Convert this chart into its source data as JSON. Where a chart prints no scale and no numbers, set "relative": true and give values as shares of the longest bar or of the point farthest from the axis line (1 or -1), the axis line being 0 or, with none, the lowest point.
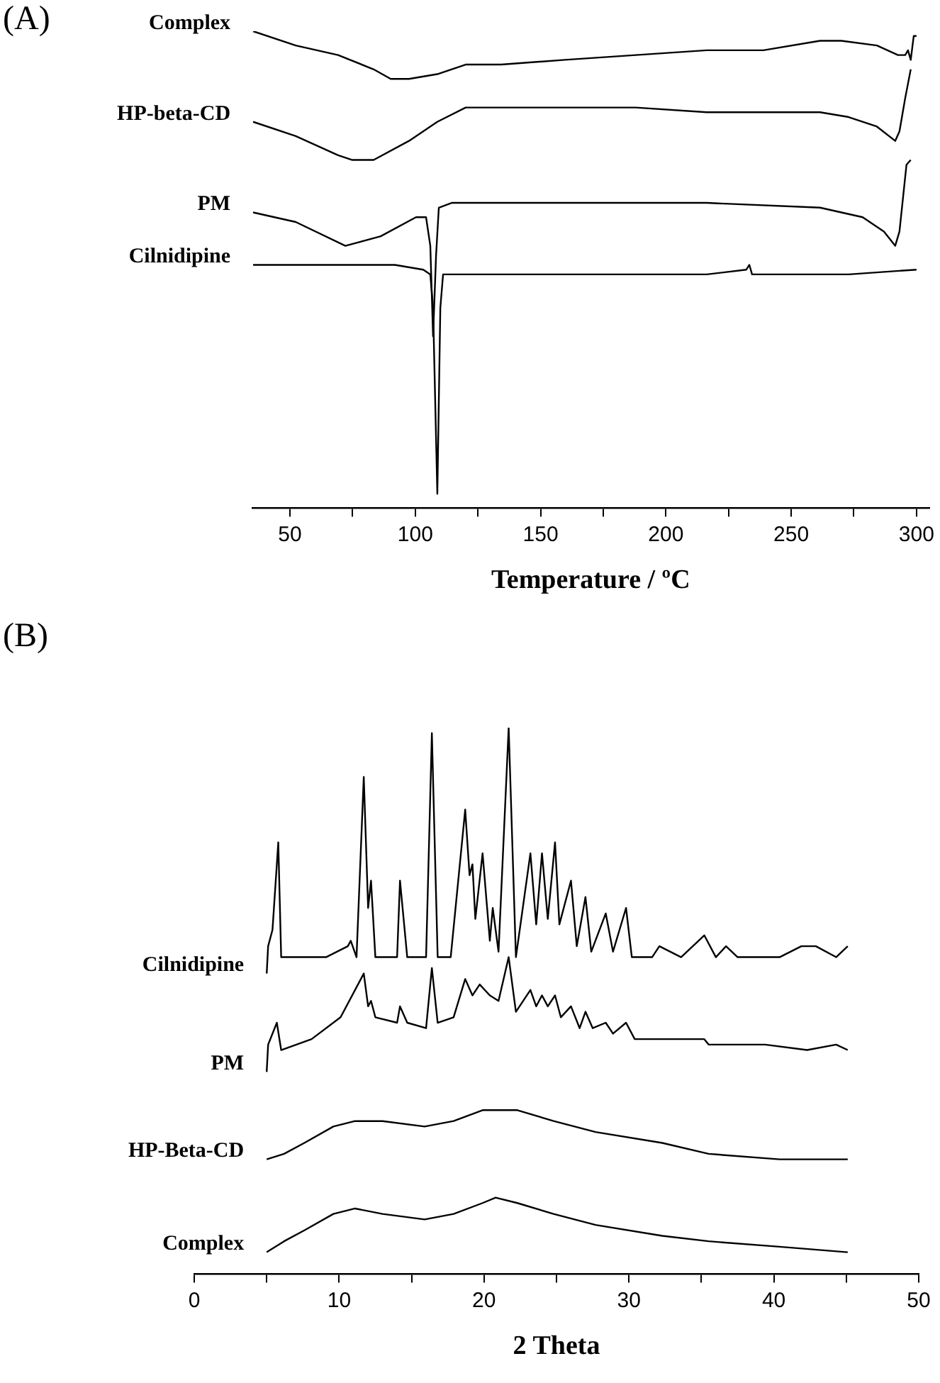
{
  "chart_data": [
    {
      "type": "line",
      "title": "(A)",
      "xlabel": "Temperature / ºC",
      "relative": true,
      "legend": false,
      "grid": false,
      "tick_labels": "x",
      "marker": "none",
      "line_style": "solid",
      "xlim": [
        35,
        305
      ],
      "xticks": [
        50,
        {
          "value": 75,
          "label": null
        },
        100,
        {
          "value": 125,
          "label": null
        },
        150,
        {
          "value": 175,
          "label": null
        },
        200,
        {
          "value": 225,
          "label": null
        },
        250,
        {
          "value": 275,
          "label": null
        },
        300
      ],
      "series": [
        {
          "name": "Complex",
          "color": "#000000",
          "x": [
            35.3,
            52.3,
            69.2,
            83.4,
            90.2,
            97.5,
            108.8,
            120.1,
            134.3,
            159.7,
            188.0,
            216.3,
            238.9,
            261.5,
            270.0,
            284.2,
            292.6,
            295.5,
            296.6,
            297.7,
            298.9,
            300
          ],
          "values": [
            1.0,
            0.97,
            0.95,
            0.92,
            0.9,
            0.9,
            0.91,
            0.93,
            0.93,
            0.94,
            0.95,
            0.96,
            0.96,
            0.98,
            0.98,
            0.97,
            0.95,
            0.95,
            0.96,
            0.94,
            0.99,
            0.99
          ]
        },
        {
          "name": "HP-beta-CD",
          "color": "#000000",
          "x": [
            35.3,
            52.3,
            69.2,
            74.9,
            83.4,
            97.5,
            108.8,
            120.1,
            131.4,
            159.7,
            188.0,
            216.3,
            261.5,
            272.9,
            284.2,
            291.5,
            293.2,
            295.5,
            297.7
          ],
          "values": [
            0.81,
            0.78,
            0.74,
            0.73,
            0.73,
            0.77,
            0.81,
            0.84,
            0.84,
            0.84,
            0.84,
            0.83,
            0.83,
            0.82,
            0.8,
            0.77,
            0.79,
            0.86,
            0.92
          ]
        },
        {
          "name": "PM",
          "color": "#000000",
          "x": [
            35.3,
            52.3,
            72.1,
            86.2,
            100.3,
            104.3,
            106.0,
            107.1,
            108.3,
            109.4,
            114.5,
            131.4,
            159.7,
            188.0,
            216.3,
            261.5,
            278.5,
            287.0,
            291.5,
            293.2,
            296.0,
            297.7
          ],
          "values": [
            0.62,
            0.6,
            0.55,
            0.57,
            0.61,
            0.61,
            0.55,
            0.36,
            0.53,
            0.63,
            0.64,
            0.64,
            0.64,
            0.64,
            0.64,
            0.63,
            0.61,
            0.58,
            0.55,
            0.58,
            0.72,
            0.73
          ]
        },
        {
          "name": "Cilnidipine",
          "color": "#000000",
          "x": [
            35.3,
            91.9,
            103.2,
            106.0,
            107.1,
            108.8,
            110.0,
            111.1,
            114.5,
            131.4,
            159.7,
            216.3,
            232.1,
            233.3,
            234.4,
            250.2,
            272.9,
            300
          ],
          "values": [
            0.51,
            0.51,
            0.5,
            0.49,
            0.42,
            0.03,
            0.42,
            0.49,
            0.49,
            0.49,
            0.49,
            0.49,
            0.5,
            0.51,
            0.49,
            0.49,
            0.49,
            0.5
          ]
        }
      ]
    },
    {
      "type": "line",
      "title": "(B)",
      "xlabel": "2 Theta",
      "relative": true,
      "legend": false,
      "grid": false,
      "tick_labels": "x",
      "marker": "none",
      "line_style": "solid",
      "xlim": [
        0,
        50
      ],
      "xticks": [
        0,
        {
          "value": 5,
          "label": null
        },
        10,
        {
          "value": 15,
          "label": null
        },
        20,
        {
          "value": 25,
          "label": null
        },
        30,
        {
          "value": 35,
          "label": null
        },
        40,
        {
          "value": 45,
          "label": null
        },
        50
      ],
      "series": [
        {
          "name": "Cilnidipine",
          "color": "#000000",
          "x": [
            5.0,
            5.1,
            5.4,
            5.8,
            6.0,
            9.1,
            10.6,
            10.8,
            11.2,
            11.7,
            12.0,
            12.2,
            12.5,
            14.0,
            14.2,
            14.7,
            16.0,
            16.4,
            16.8,
            17.7,
            18.7,
            19.0,
            19.2,
            19.4,
            19.9,
            20.4,
            20.6,
            21.0,
            21.7,
            22.2,
            23.2,
            23.6,
            24.0,
            24.2,
            24.4,
            24.9,
            25.2,
            26.0,
            26.4,
            27.0,
            27.4,
            28.4,
            28.9,
            29.8,
            30.2,
            31.6,
            32.1,
            33.6,
            35.2,
            36.0,
            36.7,
            37.5,
            40.4,
            41.9,
            42.9,
            44.3,
            45.1
          ],
          "values": [
            0.55,
            0.6,
            0.63,
            0.79,
            0.58,
            0.58,
            0.6,
            0.61,
            0.58,
            0.91,
            0.67,
            0.72,
            0.58,
            0.58,
            0.72,
            0.58,
            0.58,
            0.99,
            0.58,
            0.58,
            0.85,
            0.73,
            0.75,
            0.65,
            0.77,
            0.61,
            0.67,
            0.59,
            1.0,
            0.58,
            0.77,
            0.64,
            0.77,
            0.71,
            0.65,
            0.79,
            0.64,
            0.72,
            0.6,
            0.69,
            0.59,
            0.66,
            0.59,
            0.67,
            0.58,
            0.58,
            0.6,
            0.58,
            0.62,
            0.58,
            0.6,
            0.58,
            0.58,
            0.6,
            0.6,
            0.58,
            0.6
          ]
        },
        {
          "name": "PM",
          "color": "#000000",
          "x": [
            5.0,
            5.1,
            5.7,
            6.0,
            8.1,
            10.1,
            11.7,
            12.0,
            12.2,
            12.5,
            14.0,
            14.2,
            14.7,
            16.0,
            16.4,
            16.8,
            17.9,
            18.7,
            19.2,
            19.7,
            20.4,
            21.0,
            21.7,
            22.2,
            23.2,
            23.6,
            24.0,
            24.4,
            24.9,
            25.3,
            26.0,
            26.6,
            27.0,
            27.5,
            28.4,
            28.9,
            29.8,
            30.4,
            32.6,
            35.2,
            35.5,
            39.4,
            42.3,
            44.3,
            45.1
          ],
          "values": [
            0.37,
            0.42,
            0.46,
            0.41,
            0.43,
            0.47,
            0.55,
            0.49,
            0.5,
            0.47,
            0.46,
            0.49,
            0.46,
            0.45,
            0.56,
            0.46,
            0.47,
            0.54,
            0.51,
            0.53,
            0.51,
            0.5,
            0.58,
            0.48,
            0.52,
            0.49,
            0.51,
            0.49,
            0.51,
            0.47,
            0.49,
            0.45,
            0.48,
            0.45,
            0.46,
            0.44,
            0.46,
            0.43,
            0.43,
            0.43,
            0.42,
            0.42,
            0.41,
            0.42,
            0.41
          ]
        },
        {
          "name": "HP-Beta-CD",
          "color": "#000000",
          "x": [
            5.0,
            6.2,
            7.6,
            9.6,
            11.1,
            13.0,
            15.9,
            17.9,
            19.9,
            20.8,
            22.3,
            24.8,
            27.7,
            32.3,
            35.5,
            40.4,
            45.1
          ],
          "values": [
            0.21,
            0.22,
            0.24,
            0.27,
            0.28,
            0.28,
            0.27,
            0.28,
            0.3,
            0.3,
            0.3,
            0.28,
            0.26,
            0.24,
            0.22,
            0.21,
            0.21
          ]
        },
        {
          "name": "Complex",
          "color": "#000000",
          "x": [
            5.0,
            6.2,
            7.6,
            9.6,
            11.1,
            13.0,
            15.9,
            17.9,
            19.9,
            20.8,
            22.3,
            24.8,
            27.7,
            32.3,
            35.5,
            40.4,
            45.1
          ],
          "values": [
            0.04,
            0.06,
            0.08,
            0.11,
            0.12,
            0.11,
            0.1,
            0.11,
            0.13,
            0.14,
            0.13,
            0.11,
            0.09,
            0.07,
            0.06,
            0.05,
            0.04
          ]
        }
      ]
    }
  ]
}
